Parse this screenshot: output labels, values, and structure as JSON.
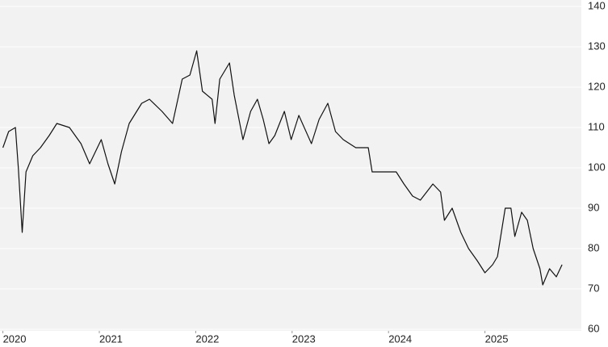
{
  "chart_data": {
    "type": "line",
    "x": [
      2020.0,
      2020.06,
      2020.13,
      2020.16,
      2020.2,
      2020.24,
      2020.31,
      2020.39,
      2020.48,
      2020.56,
      2020.69,
      2020.81,
      2020.9,
      2020.96,
      2021.02,
      2021.09,
      2021.16,
      2021.23,
      2021.31,
      2021.44,
      2021.52,
      2021.65,
      2021.76,
      2021.86,
      2021.94,
      2022.01,
      2022.07,
      2022.17,
      2022.2,
      2022.25,
      2022.35,
      2022.4,
      2022.49,
      2022.57,
      2022.64,
      2022.7,
      2022.76,
      2022.82,
      2022.92,
      2022.99,
      2023.07,
      2023.2,
      2023.28,
      2023.37,
      2023.45,
      2023.53,
      2023.66,
      2023.79,
      2023.83,
      2023.95,
      2024.08,
      2024.16,
      2024.25,
      2024.33,
      2024.46,
      2024.54,
      2024.58,
      2024.66,
      2024.75,
      2024.83,
      2024.92,
      2025.0,
      2025.08,
      2025.13,
      2025.17,
      2025.21,
      2025.27,
      2025.31,
      2025.38,
      2025.44,
      2025.5,
      2025.57,
      2025.6,
      2025.67,
      2025.74,
      2025.8
    ],
    "values": [
      105,
      109,
      110,
      100,
      84,
      99,
      103,
      105,
      108,
      111,
      110,
      106,
      101,
      104,
      107,
      101,
      96,
      104,
      111,
      116,
      117,
      114,
      111,
      122,
      123,
      129,
      119,
      117,
      111,
      122,
      126,
      118,
      107,
      114,
      117,
      112,
      106,
      108,
      114,
      107,
      113,
      106,
      112,
      116,
      109,
      107,
      105,
      105,
      99,
      99,
      99,
      96,
      93,
      92,
      96,
      94,
      87,
      90,
      84,
      80,
      77,
      74,
      76,
      78,
      84,
      90,
      90,
      83,
      89,
      87,
      80,
      75,
      71,
      75,
      73,
      76
    ],
    "color": "#111111",
    "xlim": [
      2019.97,
      2026.0
    ],
    "xticks": [
      2020,
      2021,
      2022,
      2023,
      2024,
      2025
    ],
    "ylim": [
      60,
      140
    ],
    "yticks": [
      60,
      70,
      80,
      90,
      100,
      110,
      120,
      130,
      140
    ],
    "grid": true
  }
}
